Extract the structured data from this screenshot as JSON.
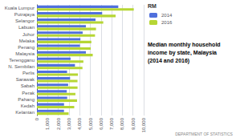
{
  "chart_data": {
    "type": "bar",
    "orientation": "horizontal",
    "title": "Median monthly household\nincome by state, Malaysia\n(2014 and 2016)",
    "categories": [
      "Kuala Lumpur",
      "Putrajaya",
      "Selangor",
      "Labuan",
      "Johor",
      "Melaka",
      "Penang",
      "Malaysia",
      "Terengganu",
      "N. Sembilan",
      "Perlis",
      "Sarawak",
      "Sabah",
      "Perak",
      "Pahang",
      "Kedah",
      "Kelantan"
    ],
    "series": [
      {
        "name": "2014",
        "values": [
          7620,
          6110,
          5488,
          4585,
          4285,
          4073,
          4027,
          4585,
          3150,
          3561,
          2823,
          3105,
          2927,
          2796,
          2834,
          2537,
          2536
        ]
      },
      {
        "name": "2016",
        "values": [
          9073,
          7371,
          6214,
          5532,
          5441,
          5097,
          5040,
          5228,
          4353,
          4269,
          3842,
          3800,
          3805,
          3605,
          3756,
          3495,
          2969
        ]
      }
    ],
    "xlim": [
      0,
      10000
    ],
    "xticks": [
      0,
      {
        "value": 1000,
        "label": "1,000"
      },
      {
        "value": 2000,
        "label": "2,000"
      },
      {
        "value": 3000,
        "label": "3,000"
      },
      {
        "value": 4000,
        "label": "4,000"
      },
      {
        "value": 5000,
        "label": "5,000"
      },
      {
        "value": 6000,
        "label": "6,000"
      },
      {
        "value": 7000,
        "label": "7,000"
      },
      {
        "value": 8000,
        "label": "8,000"
      },
      {
        "value": 9000,
        "label": "9,000"
      },
      {
        "value": 10000,
        "label": "10,000"
      }
    ],
    "grid": true,
    "legend": "upper right",
    "annotations": [
      "RM",
      "DEPARTMENT OF STATISTICS"
    ]
  }
}
